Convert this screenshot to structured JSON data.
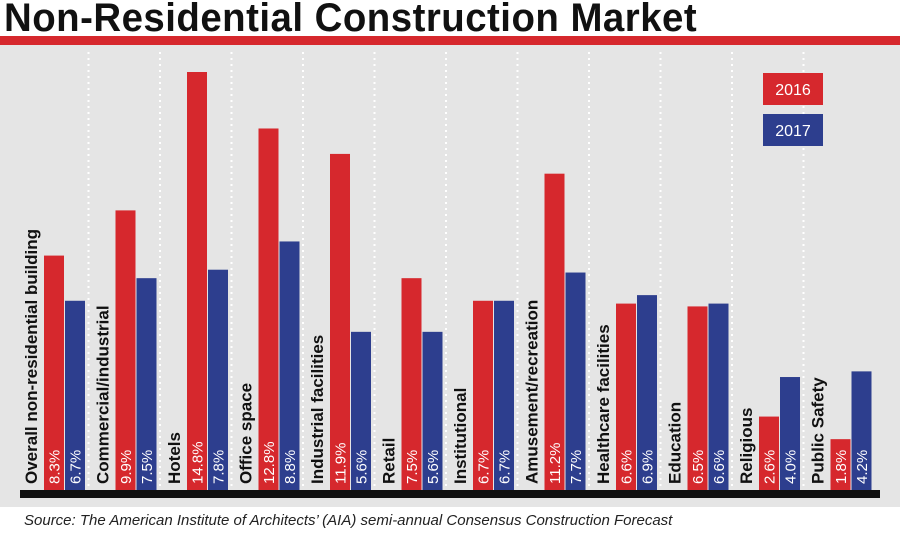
{
  "chart_data": {
    "type": "bar",
    "title": "Non-Residential Construction Market",
    "categories": [
      "Overall non-residential building",
      "Commercial/industrial",
      "Hotels",
      "Office space",
      "Industrial facilities",
      "Retail",
      "Institutional",
      "Amusement/recreation",
      "Healthcare facilities",
      "Education",
      "Religious",
      "Public Safety"
    ],
    "series": [
      {
        "name": "2016",
        "color": "#d6282d",
        "values": [
          8.3,
          9.9,
          14.8,
          12.8,
          11.9,
          7.5,
          6.7,
          11.2,
          6.6,
          6.5,
          2.6,
          1.8
        ],
        "labels": [
          "8.3%",
          "9.9%",
          "14.8%",
          "12.8%",
          "11.9%",
          "7.5%",
          "6.7%",
          "11.2%",
          "6.6%",
          "6.5%",
          "2.6%",
          "1.8%"
        ]
      },
      {
        "name": "2017",
        "color": "#2d3e8e",
        "values": [
          6.7,
          7.5,
          7.8,
          8.8,
          5.6,
          5.6,
          6.7,
          7.7,
          6.9,
          6.6,
          4.0,
          4.2
        ],
        "labels": [
          "6.7%",
          "7.5%",
          "7.8%",
          "8.8%",
          "5.6%",
          "5.6%",
          "6.7%",
          "7.7%",
          "6.9%",
          "6.6%",
          "4.0%",
          "4.2%"
        ]
      }
    ],
    "ylim": [
      0,
      14.8
    ],
    "legend_position": "top-right",
    "source": "Source: The American Institute of Architects’ (AIA) semi-annual Consensus Construction Forecast"
  }
}
